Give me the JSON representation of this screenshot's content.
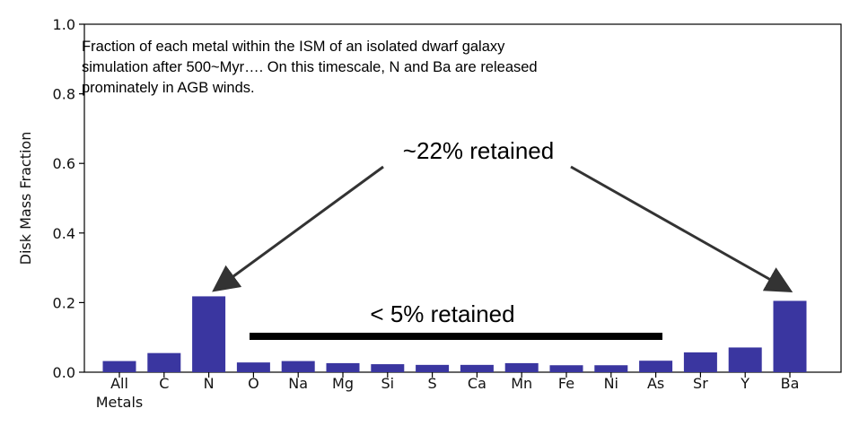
{
  "chart_data": {
    "type": "bar",
    "categories": [
      "All\nMetals",
      "C",
      "N",
      "O",
      "Na",
      "Mg",
      "Si",
      "S",
      "Ca",
      "Mn",
      "Fe",
      "Ni",
      "As",
      "Sr",
      "Y",
      "Ba"
    ],
    "values": [
      0.032,
      0.055,
      0.218,
      0.028,
      0.032,
      0.026,
      0.023,
      0.021,
      0.021,
      0.026,
      0.02,
      0.02,
      0.033,
      0.057,
      0.071,
      0.205
    ],
    "bar_color": "#3a36a0",
    "ylabel": "Disk Mass Fraction",
    "xlabel": "",
    "ylim": [
      0.0,
      1.0
    ],
    "yticks": [
      "0.0",
      "0.2",
      "0.4",
      "0.6",
      "0.8",
      "1.0"
    ],
    "grid": false,
    "description_lines": [
      "Fraction of each metal within the ISM of an isolated dwarf galaxy",
      "simulation after 500~Myr…. On this timescale, N and Ba are released",
      "prominately in AGB winds."
    ],
    "annotation_top": "~22% retained",
    "annotation_bottom": "< 5% retained",
    "annotation_bar_range": [
      "O",
      "As"
    ]
  }
}
